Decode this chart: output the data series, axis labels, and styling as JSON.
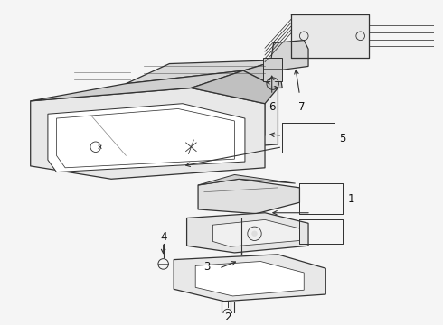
{
  "bg_color": "#f5f5f5",
  "line_color": "#333333",
  "label_fontsize": 8.5,
  "label_color": "#111111",
  "fig_w": 4.9,
  "fig_h": 3.6,
  "dpi": 100
}
